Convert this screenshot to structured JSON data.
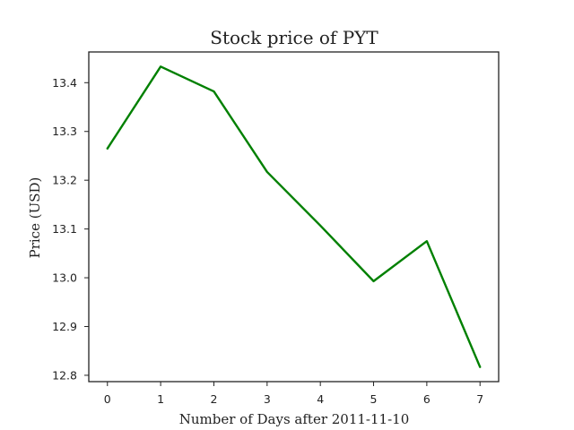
{
  "chart_data": {
    "type": "line",
    "title": "Stock price of PYT",
    "xlabel": "Number of Days after 2011-11-10",
    "ylabel": "Price (USD)",
    "x": [
      0,
      1,
      2,
      3,
      4,
      5,
      6,
      7
    ],
    "series": [
      {
        "values": [
          13.265,
          13.433,
          13.382,
          13.217,
          13.107,
          12.993,
          13.075,
          12.817
        ],
        "color": "#008000"
      }
    ],
    "xlim": [
      -0.35,
      7.35
    ],
    "ylim": [
      12.787,
      13.463
    ],
    "xticks": [
      0,
      1,
      2,
      3,
      4,
      5,
      6,
      7
    ],
    "yticks": [
      12.8,
      12.9,
      13.0,
      13.1,
      13.2,
      13.3,
      13.4
    ],
    "xtick_labels": [
      "0",
      "1",
      "2",
      "3",
      "4",
      "5",
      "6",
      "7"
    ],
    "ytick_labels": [
      "12.8",
      "12.9",
      "13.0",
      "13.1",
      "13.2",
      "13.3",
      "13.4"
    ],
    "grid": false,
    "legend": false
  }
}
